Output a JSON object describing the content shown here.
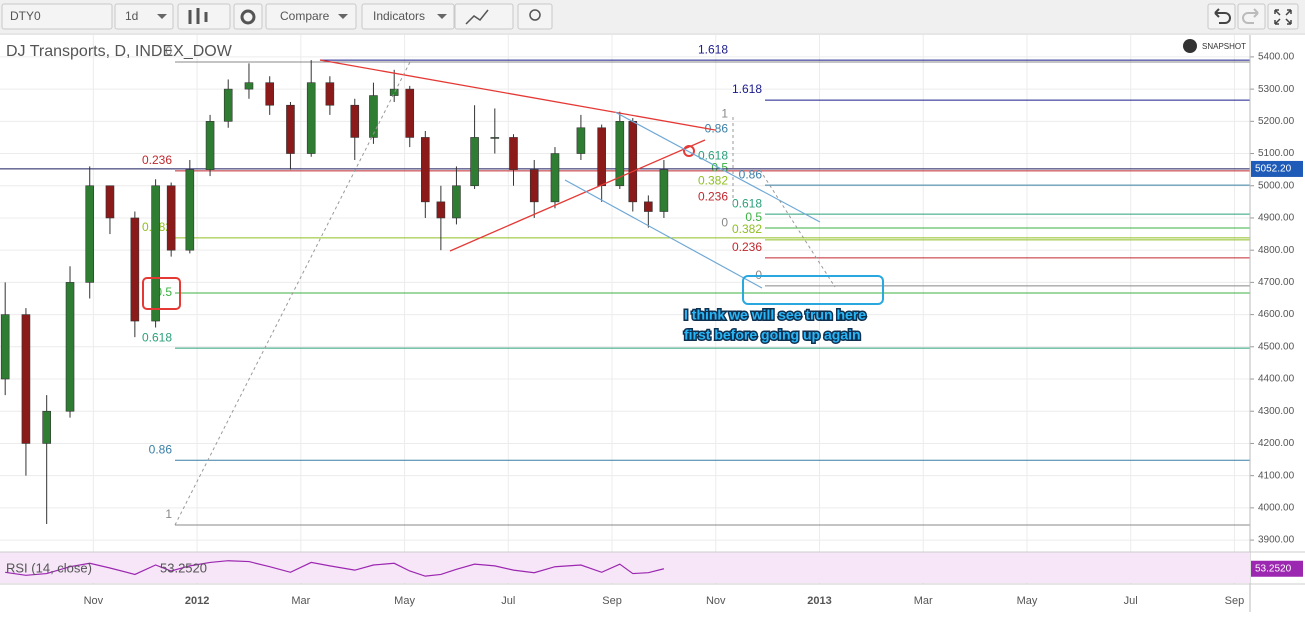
{
  "toolbar": {
    "symbol": "DTY0",
    "interval": "1d",
    "compare": "Compare",
    "indicators": "Indicators"
  },
  "chart_data": {
    "type": "candlestick",
    "title": "DJ Transports, D, INDEX_DOW",
    "snapshot": "SNAPSHOT",
    "x": [
      -1.7,
      -1.3,
      -0.9,
      -0.45,
      -0.07,
      0.32,
      0.8,
      1.2,
      1.5,
      1.86,
      2.25,
      2.6,
      3.0,
      3.4,
      3.8,
      4.2,
      4.56,
      5.04,
      5.4,
      5.8,
      6.1,
      6.4,
      6.7,
      7.0,
      7.35,
      7.74,
      8.1,
      8.5,
      8.9,
      9.4,
      9.8,
      10.15,
      10.4,
      10.7,
      11.0
    ],
    "open": [
      4400,
      4600,
      4200,
      4300,
      4700,
      5000,
      4900,
      4580,
      5000,
      4800,
      5050,
      5200,
      5300,
      5320,
      5250,
      5100,
      5320,
      5250,
      5150,
      5280,
      5300,
      5150,
      4950,
      4900,
      5000,
      5150,
      5150,
      5050,
      4950,
      5100,
      5180,
      5000,
      5200,
      4950,
      4920
    ],
    "high": [
      4700,
      4620,
      4350,
      4750,
      5060,
      5000,
      4920,
      5020,
      5010,
      5080,
      5220,
      5330,
      5380,
      5340,
      5260,
      5390,
      5340,
      5270,
      5320,
      5360,
      5310,
      5170,
      5000,
      5060,
      5250,
      5240,
      5160,
      5080,
      5120,
      5220,
      5190,
      5230,
      5210,
      4970,
      5080
    ],
    "low": [
      4350,
      4100,
      3950,
      4280,
      4650,
      4850,
      4530,
      4560,
      4780,
      4790,
      5030,
      5180,
      5270,
      5220,
      5050,
      5090,
      5220,
      5080,
      5130,
      5260,
      5120,
      4900,
      4800,
      4880,
      4990,
      5100,
      5000,
      4900,
      4930,
      5080,
      4950,
      4990,
      4920,
      4870,
      4900
    ],
    "close": [
      4600,
      4200,
      4300,
      4700,
      5000,
      4900,
      4580,
      5000,
      4800,
      5050,
      5200,
      5300,
      5320,
      5250,
      5100,
      5320,
      5250,
      5150,
      5280,
      5300,
      5150,
      4950,
      4900,
      5000,
      5150,
      5150,
      5050,
      4950,
      5100,
      5180,
      5000,
      5200,
      4950,
      4920,
      5050
    ],
    "up_color": "#2e7d32",
    "down_color": "#8b1a1a",
    "xlim": [
      -1.8,
      22.3
    ],
    "xticks": [
      {
        "value": 0,
        "label": "Nov"
      },
      {
        "value": 2,
        "label": "2012"
      },
      {
        "value": 4,
        "label": "Mar"
      },
      {
        "value": 6,
        "label": "May"
      },
      {
        "value": 8,
        "label": "Jul"
      },
      {
        "value": 10,
        "label": "Sep"
      },
      {
        "value": 12,
        "label": "Nov"
      },
      {
        "value": 14,
        "label": "2013"
      },
      {
        "value": 16,
        "label": "Mar"
      },
      {
        "value": 18,
        "label": "May"
      },
      {
        "value": 20,
        "label": "Jul"
      },
      {
        "value": 22,
        "label": "Sep"
      }
    ],
    "ylim": [
      3863,
      5468
    ],
    "yticks": [
      {
        "value": 3900,
        "label": "3900.00"
      },
      {
        "value": 4000,
        "label": "4000.00"
      },
      {
        "value": 4100,
        "label": "4100.00"
      },
      {
        "value": 4200,
        "label": "4200.00"
      },
      {
        "value": 4300,
        "label": "4300.00"
      },
      {
        "value": 4400,
        "label": "4400.00"
      },
      {
        "value": 4500,
        "label": "4500.00"
      },
      {
        "value": 4600,
        "label": "4600.00"
      },
      {
        "value": 4700,
        "label": "4700.00"
      },
      {
        "value": 4800,
        "label": "4800.00"
      },
      {
        "value": 4900,
        "label": "4900.00"
      },
      {
        "value": 5000,
        "label": "5000.00"
      },
      {
        "value": 5100,
        "label": "5100.00"
      },
      {
        "value": 5200,
        "label": "5200.00"
      },
      {
        "value": 5300,
        "label": "5300.00"
      },
      {
        "value": 5400,
        "label": "5400.00"
      }
    ],
    "grid": true,
    "last_price": {
      "value": 5052.2,
      "label": "5052.20"
    },
    "fib_sets": [
      {
        "levels": [
          0,
          0.236,
          0.382,
          0.5,
          0.618,
          0.86,
          1
        ],
        "prices": [
          5384,
          5046,
          4838,
          4667,
          4496,
          4148,
          3947
        ],
        "colors": [
          "#888888",
          "#c0282d",
          "#8fbf20",
          "#3cb043",
          "#2aa07a",
          "#3a7fa5",
          "#888888"
        ]
      },
      {
        "levels": [
          1.618
        ],
        "prices": [
          5390
        ],
        "colors": [
          "#1a1a8c"
        ]
      },
      {
        "levels": [
          1,
          0.86,
          0.618,
          0.5,
          0.382,
          0.236,
          0
        ],
        "prices": [
          5222,
          5175,
          5091,
          5054,
          5014,
          4964,
          4884
        ],
        "colors": [
          "#888888",
          "#3a7fa5",
          "#2aa07a",
          "#3cb043",
          "#8fbf20",
          "#c0282d",
          "#888888"
        ]
      },
      {
        "levels": [
          1.618,
          0.86,
          0.618,
          0.5,
          0.382,
          0.236,
          0
        ],
        "prices": [
          5266,
          5002,
          4912,
          4869,
          4832,
          4776,
          4689
        ],
        "colors": [
          "#1a1a8c",
          "#3a7fa5",
          "#2aa07a",
          "#3cb043",
          "#8fbf20",
          "#c0282d",
          "#888888"
        ]
      }
    ],
    "annotation": [
      "I think we will see trun here",
      "first before going up again"
    ],
    "rsi": {
      "title": "RSI (14, close)",
      "color": "#9c27b0",
      "ylim": [
        20,
        90
      ],
      "values": [
        45,
        38,
        42,
        58,
        66,
        55,
        40,
        62,
        48,
        60,
        68,
        72,
        70,
        58,
        45,
        68,
        60,
        50,
        62,
        66,
        48,
        36,
        40,
        52,
        64,
        60,
        50,
        44,
        58,
        62,
        45,
        64,
        42,
        44,
        53.252
      ],
      "last": {
        "value": 53.252,
        "label": "53.2520"
      }
    }
  }
}
